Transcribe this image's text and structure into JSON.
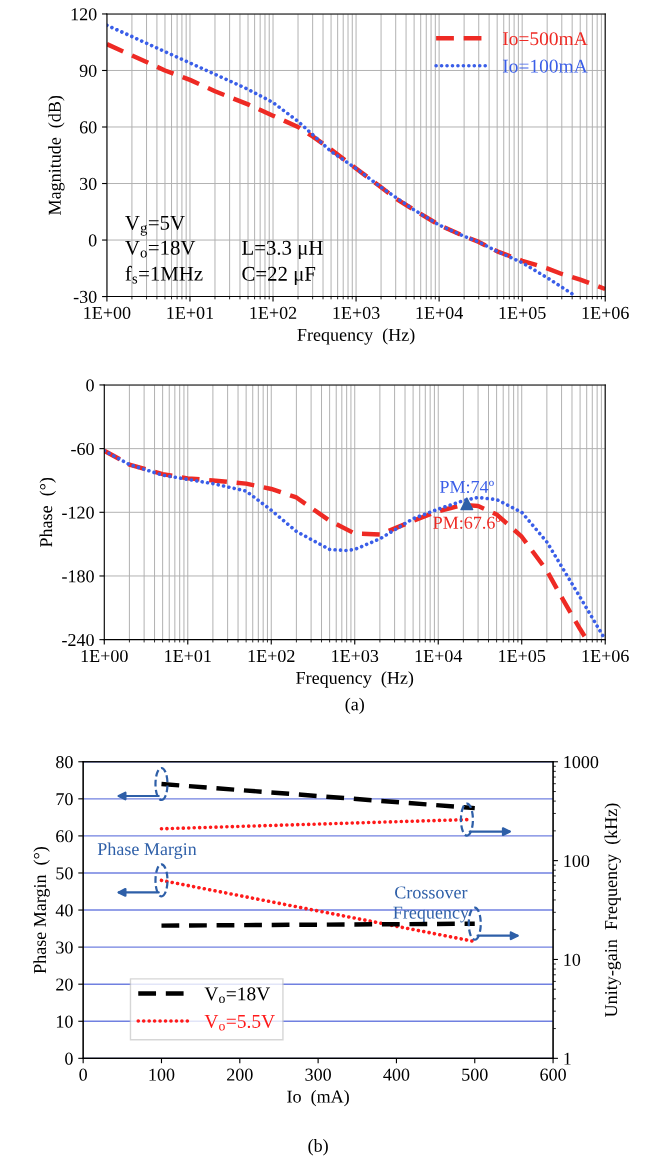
{
  "chart_data": [
    {
      "type": "line",
      "xlabel": "Frequency  (Hz)",
      "ylabel": "Magnitude  (dB)",
      "log": "x",
      "grid": true,
      "legend": "top right",
      "xlim": [
        1,
        1000000
      ],
      "xticks": [
        {
          "value": 1,
          "label": "1E+00"
        },
        {
          "value": 10,
          "label": "1E+01"
        },
        {
          "value": 100,
          "label": "1E+02"
        },
        {
          "value": 1000,
          "label": "1E+03"
        },
        {
          "value": 10000,
          "label": "1E+04"
        },
        {
          "value": 100000,
          "label": "1E+05"
        },
        {
          "value": 1000000,
          "label": "1E+06"
        }
      ],
      "ylim": [
        -30,
        120
      ],
      "yticks": [
        -30,
        0,
        30,
        60,
        90,
        120
      ],
      "annotations": [
        "V$_{g}$=5V",
        "V$_{o}$=18V",
        "f$_{s}$=1MHz",
        "L=3.3 μH",
        "C=22 μF"
      ],
      "series": [
        {
          "name": "Io=500mA",
          "color": "#ee2a24",
          "line_style": "dashed",
          "x": [
            1,
            2,
            5,
            10,
            20,
            50,
            100,
            200,
            300,
            500,
            1000,
            2000,
            3000,
            5000,
            10000,
            20000,
            30000,
            50000,
            100000,
            200000,
            300000,
            500000,
            1000000
          ],
          "values": [
            104,
            98,
            90,
            85,
            79,
            72,
            66,
            60,
            55,
            48,
            38,
            28,
            22,
            16,
            8,
            2,
            -1,
            -6,
            -11,
            -15,
            -18,
            -21,
            -26
          ]
        },
        {
          "name": "Io=100mA",
          "color": "#3a5ee8",
          "line_style": "dotted",
          "x": [
            1,
            2,
            5,
            10,
            20,
            50,
            100,
            200,
            300,
            500,
            1000,
            2000,
            5000,
            10000,
            20000,
            30000,
            50000,
            100000,
            200000,
            300000,
            450000
          ],
          "values": [
            114,
            108,
            100,
            94,
            88,
            80,
            73,
            63,
            56,
            47,
            38,
            28,
            16,
            8,
            2,
            -1,
            -6,
            -12,
            -20,
            -25,
            -30
          ]
        }
      ]
    },
    {
      "type": "line",
      "xlabel": "Frequency  (Hz)",
      "ylabel": "Phase  (°)",
      "log": "x",
      "grid": true,
      "xlim": [
        1,
        1000000
      ],
      "xticks": [
        {
          "value": 1,
          "label": "1E+00"
        },
        {
          "value": 10,
          "label": "1E+01"
        },
        {
          "value": 100,
          "label": "1E+02"
        },
        {
          "value": 1000,
          "label": "1E+03"
        },
        {
          "value": 10000,
          "label": "1E+04"
        },
        {
          "value": 100000,
          "label": "1E+05"
        },
        {
          "value": 1000000,
          "label": "1E+06"
        }
      ],
      "ylim": [
        -240,
        0
      ],
      "yticks": [
        -240,
        -180,
        -120,
        -60,
        0
      ],
      "annotations": [
        {
          "text": "PM:67.6º",
          "x": 22000,
          "y": -113
        },
        {
          "text": "PM:74º",
          "x": 22000,
          "y": -108
        },
        "(a)"
      ],
      "series": [
        {
          "color": "#ee2a24",
          "line_style": "dashed",
          "x": [
            1,
            2,
            5,
            10,
            20,
            50,
            100,
            200,
            500,
            1000,
            2000,
            5000,
            10000,
            20000,
            30000,
            50000,
            100000,
            200000,
            300000,
            500000,
            600000
          ],
          "values": [
            -62,
            -75,
            -84,
            -88,
            -90,
            -93,
            -98,
            -106,
            -128,
            -140,
            -141,
            -128,
            -119,
            -113,
            -114,
            -122,
            -143,
            -175,
            -200,
            -230,
            -240
          ]
        },
        {
          "color": "#3a5ee8",
          "line_style": "dotted",
          "x": [
            1,
            2,
            5,
            10,
            20,
            50,
            100,
            200,
            500,
            800,
            1000,
            2000,
            5000,
            10000,
            20000,
            30000,
            50000,
            100000,
            200000,
            500000,
            1000000
          ],
          "values": [
            -62,
            -75,
            -85,
            -89,
            -93,
            -100,
            -118,
            -138,
            -155,
            -156,
            -155,
            -145,
            -126,
            -117,
            -109,
            -106,
            -108,
            -120,
            -148,
            -200,
            -240
          ]
        },
        {
          "type": "scatter",
          "marker": "triangle",
          "color": "#2e5fa8",
          "x": [
            22000
          ],
          "values": [
            -112
          ]
        }
      ]
    },
    {
      "type": "line",
      "xlabel": "Io  (mA)",
      "ylabel": "Phase Margin  (°)",
      "y2label": "Unity-gain  Frequency  (kHz)",
      "log": "y2",
      "grid": "y",
      "legend": "bottom left",
      "xlim": [
        0,
        600
      ],
      "xticks": [
        0,
        100,
        200,
        300,
        400,
        500,
        600
      ],
      "ylim": [
        0,
        80
      ],
      "yticks": [
        0,
        10,
        20,
        30,
        40,
        50,
        60,
        70,
        80
      ],
      "y2lim": [
        1,
        1000
      ],
      "y2ticks": [
        1,
        10,
        100,
        1000
      ],
      "annotations": [
        "Phase Margin",
        "Crossover\nFrequency",
        "(b)"
      ],
      "series": [
        {
          "name": "V$_{o}$=18V",
          "color": "#000000",
          "line_style": "dashed",
          "x": [
            100,
            500
          ],
          "values": [
            74,
            67.5
          ]
        },
        {
          "name": "V$_{o}$=5.5V",
          "color": "#ff1a1a",
          "line_style": "dotted",
          "x": [
            100,
            500
          ],
          "values": [
            48,
            31.5
          ]
        },
        {
          "axis": "y2",
          "color": "#000000",
          "line_style": "dashed",
          "x": [
            100,
            500
          ],
          "values": [
            22,
            23
          ]
        },
        {
          "axis": "y2",
          "color": "#ff1a1a",
          "line_style": "dotted",
          "x": [
            100,
            490
          ],
          "values": [
            210,
            260
          ]
        }
      ]
    }
  ]
}
